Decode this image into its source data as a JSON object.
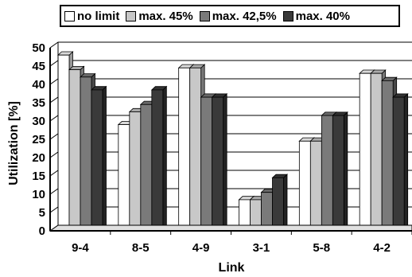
{
  "chart_data": {
    "type": "bar",
    "title": "",
    "xlabel": "Link",
    "ylabel": "Utilization [%]",
    "ylim": [
      0,
      50
    ],
    "yticks": [
      0,
      5,
      10,
      15,
      20,
      25,
      30,
      35,
      40,
      45,
      50
    ],
    "categories": [
      "9-4",
      "8-5",
      "4-9",
      "3-1",
      "5-8",
      "4-2"
    ],
    "grid": "horizontal",
    "legend_position": "top",
    "series": [
      {
        "name": "no limit",
        "color": "#ffffff",
        "values": [
          48,
          29,
          44.5,
          8.5,
          24.5,
          43
        ]
      },
      {
        "name": "max. 45%",
        "color": "#c8c8c8",
        "values": [
          44,
          32.5,
          44.5,
          8.5,
          24.5,
          43
        ]
      },
      {
        "name": "max. 42,5%",
        "color": "#7a7a7a",
        "values": [
          42,
          34.5,
          36.5,
          10.5,
          31.5,
          41
        ]
      },
      {
        "name": "max. 40%",
        "color": "#3a3a3a",
        "values": [
          38.5,
          38.5,
          36.5,
          14.5,
          31.5,
          36.5
        ]
      }
    ]
  }
}
